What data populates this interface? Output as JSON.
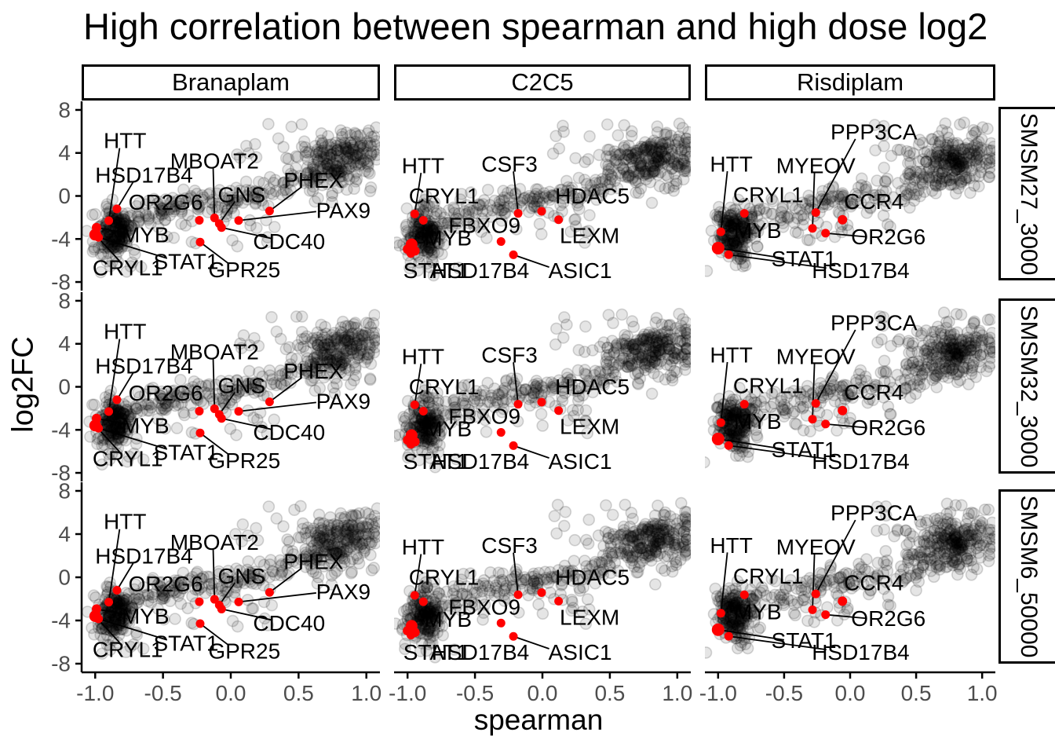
{
  "title": "High correlation between spearman and high dose log2",
  "axes": {
    "x_label": "spearman",
    "y_label": "log2FC",
    "x_tick_labels": [
      "-1.0",
      "-0.5",
      "0.0",
      "0.5",
      "1.0"
    ],
    "y_tick_labels": [
      "8",
      "4",
      "0",
      "-4",
      "-8"
    ]
  },
  "facets": {
    "columns": [
      "Branaplam",
      "C2C5",
      "Risdiplam"
    ],
    "rows": [
      "SMSM27_3000",
      "SMSM32_3000",
      "SMSM6_50000"
    ]
  },
  "colors": {
    "highlight": "#FF0000",
    "tick_label": "#4D4D4D",
    "axis_line": "#000000",
    "strip_border": "#000000",
    "background": "#FFFFFF",
    "grey_fill": "rgba(0,0,0,0.10)",
    "grey_stroke": "rgba(0,0,0,0.16)"
  },
  "chart_data": {
    "type": "scatter",
    "title": "High correlation between spearman and high dose log2",
    "xlabel": "spearman",
    "ylabel": "log2FC",
    "x_range": [
      -1.1,
      1.1
    ],
    "y_range": [
      -8.8,
      8.8
    ],
    "x_ticks": [
      -1.0,
      -0.5,
      0.0,
      0.5,
      1.0
    ],
    "y_ticks": [
      8,
      4,
      0,
      -4,
      -8
    ],
    "facet_columns": [
      "Branaplam",
      "C2C5",
      "Risdiplam"
    ],
    "facet_rows": [
      "SMSM27_3000",
      "SMSM32_3000",
      "SMSM6_50000"
    ],
    "note": "Nine panels; each drug column repeats the same red highlighted genes across its three dose rows over a translucent grey cloud of ~630 background genes rising from (-1,-4) to (1,4).",
    "background_cloud": {
      "per_panel_points": 626,
      "point_radius": 7,
      "components": [
        {
          "name": "low-left-cluster",
          "n": 190,
          "x_mean": -0.87,
          "x_sd": 0.07,
          "y_mean": -3.4,
          "y_sd": 1.15
        },
        {
          "name": "mid-band",
          "n": 150,
          "x_min": -0.8,
          "x_max_per_col": [
            0.45,
            0.52,
            0.55
          ],
          "intercept": -0.3,
          "slope": 2.4,
          "noise_sd": 0.75
        },
        {
          "name": "high-right-cluster",
          "n": 250,
          "x_mean_per_col": [
            0.78,
            0.8,
            0.78
          ],
          "x_sd": 0.16,
          "intercept": 1.2,
          "slope": 2.6,
          "noise_sd": 1.25
        },
        {
          "name": "sparse-below-band",
          "n": 18,
          "x_min": -0.55,
          "x_max": 0.35,
          "y_min": -4.6,
          "y_max": -1.6
        },
        {
          "name": "top-mid-outliers",
          "n": 12,
          "x_min": 0.05,
          "x_max": 0.55,
          "y_min": 3.2,
          "y_max": 6.6
        },
        {
          "name": "low-tail",
          "n": 6,
          "x_mean": -0.82,
          "x_sd": 0.12,
          "y_min": -7.5,
          "y_max": -5.6
        }
      ]
    },
    "highlights": {
      "Branaplam": {
        "points": [
          {
            "x": -0.9,
            "y": -2.3,
            "r": 5.5
          },
          {
            "x": -0.84,
            "y": -1.2,
            "r": 5.5
          },
          {
            "x": -0.99,
            "y": -2.94,
            "r": 6
          },
          {
            "x": -1.0,
            "y": -3.6,
            "r": 7.5
          },
          {
            "x": -0.975,
            "y": -3.85,
            "r": 5.5
          },
          {
            "x": -0.232,
            "y": -2.26,
            "r": 5.5
          },
          {
            "x": -0.12,
            "y": -2.04,
            "r": 5.5
          },
          {
            "x": -0.085,
            "y": -2.57,
            "r": 5.5
          },
          {
            "x": -0.068,
            "y": -2.94,
            "r": 5.5
          },
          {
            "x": 0.058,
            "y": -2.28,
            "r": 5.5
          },
          {
            "x": 0.286,
            "y": -1.4,
            "r": 5.5
          },
          {
            "x": -0.226,
            "y": -4.29,
            "r": 5.5
          }
        ],
        "labels": [
          {
            "text": "HTT",
            "x": -0.78,
            "y": 5.15,
            "line": [
              -0.82,
              4.45,
              -0.9,
              -2.3
            ]
          },
          {
            "text": "HSD17B4",
            "x": -0.64,
            "y": 1.95,
            "line": [
              -0.72,
              1.3,
              -0.84,
              -1.2
            ]
          },
          {
            "text": "OR2G6",
            "x": -0.48,
            "y": -0.6,
            "line": null
          },
          {
            "text": "MYB",
            "x": -0.63,
            "y": -3.6,
            "line": [
              -0.77,
              -3.45,
              -0.99,
              -2.94
            ]
          },
          {
            "text": "CRYL1",
            "x": -0.76,
            "y": -6.7,
            "line": [
              -0.82,
              -6.05,
              -1.0,
              -3.6
            ]
          },
          {
            "text": "STAT1",
            "x": -0.33,
            "y": -6.1,
            "line": [
              -0.47,
              -5.8,
              -0.975,
              -3.85
            ]
          },
          {
            "text": "GPR25",
            "x": 0.1,
            "y": -6.85,
            "line": [
              -0.02,
              -6.25,
              -0.226,
              -4.29
            ]
          },
          {
            "text": "MBOAT2",
            "x": -0.12,
            "y": 3.25,
            "line": [
              -0.13,
              2.6,
              -0.12,
              -2.04
            ]
          },
          {
            "text": "GNS",
            "x": 0.08,
            "y": 0.1,
            "line": [
              0.03,
              -0.52,
              -0.085,
              -2.57
            ]
          },
          {
            "text": "CDC40",
            "x": 0.43,
            "y": -4.25,
            "line": [
              0.3,
              -3.95,
              -0.068,
              -2.94
            ]
          },
          {
            "text": "PHEX",
            "x": 0.61,
            "y": 1.45,
            "line": [
              0.52,
              0.82,
              0.286,
              -1.4
            ]
          },
          {
            "text": "PAX9",
            "x": 0.83,
            "y": -1.35,
            "line": [
              0.63,
              -1.45,
              0.058,
              -2.28
            ]
          }
        ]
      },
      "C2C5": {
        "points": [
          {
            "x": -0.947,
            "y": -1.67,
            "r": 5.5
          },
          {
            "x": -0.883,
            "y": -2.26,
            "r": 5.5
          },
          {
            "x": -0.97,
            "y": -4.5,
            "r": 7.5
          },
          {
            "x": -1.0,
            "y": -4.95,
            "r": 6
          },
          {
            "x": -0.945,
            "y": -5.1,
            "r": 6
          },
          {
            "x": -0.975,
            "y": -5.35,
            "r": 5.5
          },
          {
            "x": -0.18,
            "y": -1.62,
            "r": 5.5
          },
          {
            "x": -0.006,
            "y": -1.42,
            "r": 5.5
          },
          {
            "x": 0.12,
            "y": -2.21,
            "r": 5.5
          },
          {
            "x": -0.307,
            "y": -4.24,
            "r": 5.5
          },
          {
            "x": -0.215,
            "y": -5.47,
            "r": 5.5
          }
        ],
        "labels": [
          {
            "text": "HTT",
            "x": -0.885,
            "y": 2.8,
            "line": [
              -0.9,
              2.15,
              -0.947,
              -1.67
            ]
          },
          {
            "text": "CSF3",
            "x": -0.244,
            "y": 2.95,
            "line": [
              -0.215,
              2.28,
              -0.18,
              -1.62
            ]
          },
          {
            "text": "CRYL1",
            "x": -0.73,
            "y": 0.0,
            "line": null
          },
          {
            "text": "HDAC5",
            "x": 0.37,
            "y": 0.0,
            "line": null
          },
          {
            "text": "FBXO9",
            "x": -0.43,
            "y": -2.75,
            "line": null
          },
          {
            "text": "MYB",
            "x": -0.7,
            "y": -3.9,
            "line": null
          },
          {
            "text": "LEXM",
            "x": 0.35,
            "y": -3.7,
            "line": null
          },
          {
            "text": "STAT1",
            "x": -0.79,
            "y": -6.95,
            "line": null
          },
          {
            "text": "HSD17B4",
            "x": -0.46,
            "y": -6.95,
            "line": null
          },
          {
            "text": "ASIC1",
            "x": 0.28,
            "y": -6.95,
            "line": [
              0.05,
              -6.62,
              -0.215,
              -5.47
            ]
          }
        ]
      },
      "Risdiplam": {
        "points": [
          {
            "x": -0.801,
            "y": -1.62,
            "r": 5.5
          },
          {
            "x": -0.979,
            "y": -3.33,
            "r": 5.5
          },
          {
            "x": -0.26,
            "y": -1.54,
            "r": 5.5
          },
          {
            "x": -0.285,
            "y": -3.01,
            "r": 5.5
          },
          {
            "x": -0.058,
            "y": -2.21,
            "r": 6
          },
          {
            "x": -0.186,
            "y": -3.46,
            "r": 5.5
          },
          {
            "x": -1.0,
            "y": -4.85,
            "r": 8
          },
          {
            "x": -0.92,
            "y": -5.46,
            "r": 5.5
          }
        ],
        "labels": [
          {
            "text": "PPP3CA",
            "x": 0.18,
            "y": 5.95,
            "line": [
              0.04,
              5.3,
              -0.26,
              -1.54
            ]
          },
          {
            "text": "HTT",
            "x": -0.9,
            "y": 2.95,
            "line": [
              -0.93,
              2.3,
              -0.979,
              -3.33
            ]
          },
          {
            "text": "MYEOV",
            "x": -0.26,
            "y": 2.8,
            "line": [
              -0.27,
              2.15,
              -0.285,
              -3.01
            ]
          },
          {
            "text": "CRYL1",
            "x": -0.62,
            "y": 0.1,
            "line": null
          },
          {
            "text": "CCR4",
            "x": 0.18,
            "y": -0.5,
            "line": null
          },
          {
            "text": "MYB",
            "x": -0.7,
            "y": -3.2,
            "line": null
          },
          {
            "text": "OR2G6",
            "x": 0.29,
            "y": -3.8,
            "line": [
              0.12,
              -3.8,
              -0.186,
              -3.46
            ]
          },
          {
            "text": "STAT1",
            "x": -0.35,
            "y": -5.85,
            "line": [
              -0.5,
              -5.8,
              -1.0,
              -4.85
            ]
          },
          {
            "text": "HSD17B4",
            "x": 0.08,
            "y": -6.95,
            "line": [
              -0.18,
              -6.7,
              -0.92,
              -5.46
            ]
          }
        ]
      }
    }
  }
}
